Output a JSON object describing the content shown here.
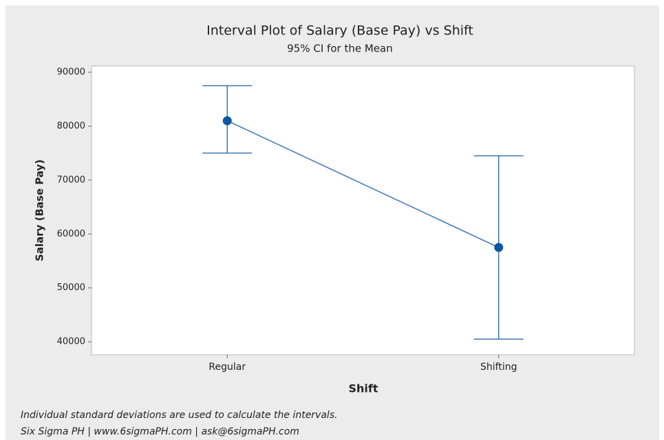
{
  "chart_data": {
    "type": "interval",
    "title": "Interval Plot of Salary (Base Pay) vs Shift",
    "subtitle": "95% CI for the Mean",
    "x_label": "Shift",
    "y_label": "Salary (Base Pay)",
    "categories": [
      "Regular",
      "Shifting"
    ],
    "series": [
      {
        "color": "#0b56a4",
        "values": [
          81000,
          57500
        ],
        "ci_lower": [
          75000,
          40500
        ],
        "ci_upper": [
          87500,
          74500
        ]
      }
    ],
    "ylim": [
      37600,
      91150
    ],
    "yticks": [
      40000,
      50000,
      60000,
      70000,
      80000,
      90000
    ],
    "footnotes": [
      "Individual standard deviations are used to calculate the intervals.",
      "Six Sigma PH  |  www.6sigmaPH.com  |  ask@6sigmaPH.com"
    ]
  }
}
